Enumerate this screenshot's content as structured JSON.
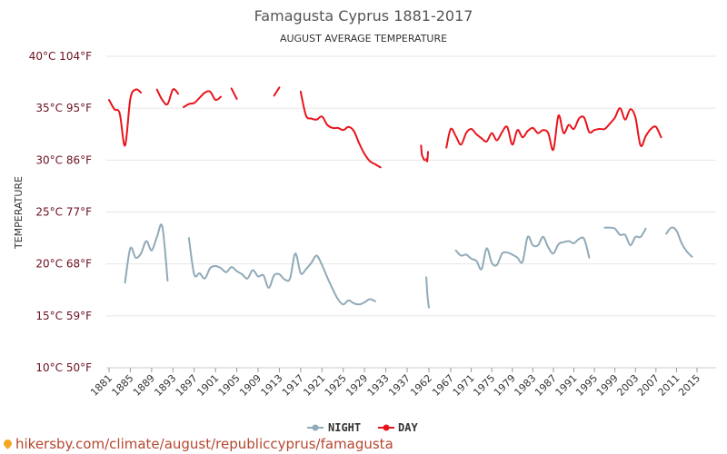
{
  "chart_data": {
    "type": "line",
    "title": "Famagusta Cyprus 1881-2017",
    "subtitle": "AUGUST AVERAGE TEMPERATURE",
    "ylabel": "TEMPERATURE",
    "ylim": [
      10,
      40
    ],
    "y_ticks": [
      {
        "value": 10,
        "label": "10°C 50°F"
      },
      {
        "value": 15,
        "label": "15°C 59°F"
      },
      {
        "value": 20,
        "label": "20°C 68°F"
      },
      {
        "value": 25,
        "label": "25°C 77°F"
      },
      {
        "value": 30,
        "label": "30°C 86°F"
      },
      {
        "value": 35,
        "label": "35°C 95°F"
      },
      {
        "value": 40,
        "label": "40°C 104°F"
      }
    ],
    "x_tick_labels": [
      "1881",
      "1885",
      "1889",
      "1893",
      "1897",
      "1901",
      "1905",
      "1909",
      "1913",
      "1917",
      "1921",
      "1925",
      "1929",
      "1933",
      "1937",
      "1962",
      "1967",
      "1971",
      "1975",
      "1979",
      "1983",
      "1987",
      "1991",
      "1995",
      "1999",
      "2003",
      "2007",
      "2011",
      "2015"
    ],
    "grid": true,
    "legend_position": "bottom",
    "series": [
      {
        "name": "NIGHT",
        "color": "#90aab8",
        "points": [
          [
            "1884",
            18.2
          ],
          [
            "1885",
            21.5
          ],
          [
            "1886",
            20.6
          ],
          [
            "1887",
            21.0
          ],
          [
            "1888",
            22.2
          ],
          [
            "1889",
            21.3
          ],
          [
            "1890",
            22.6
          ],
          [
            "1891",
            23.6
          ],
          [
            "1892",
            18.4
          ],
          null,
          [
            "1896",
            22.5
          ],
          [
            "1897",
            19.0
          ],
          [
            "1898",
            19.1
          ],
          [
            "1899",
            18.6
          ],
          [
            "1900",
            19.6
          ],
          [
            "1901",
            19.8
          ],
          [
            "1902",
            19.6
          ],
          [
            "1903",
            19.2
          ],
          [
            "1904",
            19.7
          ],
          [
            "1905",
            19.3
          ],
          [
            "1906",
            19.0
          ],
          [
            "1907",
            18.6
          ],
          [
            "1908",
            19.4
          ],
          [
            "1909",
            18.8
          ],
          [
            "1910",
            18.9
          ],
          [
            "1911",
            17.7
          ],
          [
            "1912",
            18.9
          ],
          [
            "1913",
            19.0
          ],
          [
            "1914",
            18.5
          ],
          [
            "1915",
            18.6
          ],
          [
            "1916",
            21.0
          ],
          [
            "1917",
            19.1
          ],
          [
            "1918",
            19.5
          ],
          [
            "1919",
            20.1
          ],
          [
            "1920",
            20.8
          ],
          [
            "1921",
            19.9
          ],
          [
            "1922",
            18.7
          ],
          [
            "1923",
            17.6
          ],
          [
            "1924",
            16.6
          ],
          [
            "1925",
            16.1
          ],
          [
            "1926",
            16.5
          ],
          [
            "1927",
            16.2
          ],
          [
            "1928",
            16.1
          ],
          [
            "1929",
            16.3
          ],
          [
            "1930",
            16.6
          ],
          [
            "1931",
            16.4
          ],
          null,
          [
            "1959",
            18.7
          ],
          [
            "1960",
            17.3
          ],
          [
            "1961",
            16.4
          ],
          [
            "1962",
            15.8
          ],
          null,
          [
            "1968",
            21.3
          ],
          [
            "1969",
            20.8
          ],
          [
            "1970",
            20.9
          ],
          [
            "1971",
            20.5
          ],
          [
            "1972",
            20.3
          ],
          [
            "1973",
            19.5
          ],
          [
            "1974",
            21.5
          ],
          [
            "1975",
            20.1
          ],
          [
            "1976",
            19.9
          ],
          [
            "1977",
            21.0
          ],
          [
            "1978",
            21.1
          ],
          [
            "1979",
            20.9
          ],
          [
            "1980",
            20.6
          ],
          [
            "1981",
            20.2
          ],
          [
            "1982",
            22.6
          ],
          [
            "1983",
            21.8
          ],
          [
            "1984",
            21.8
          ],
          [
            "1985",
            22.6
          ],
          [
            "1986",
            21.6
          ],
          [
            "1987",
            21.0
          ],
          [
            "1988",
            21.9
          ],
          [
            "1989",
            22.1
          ],
          [
            "1990",
            22.2
          ],
          [
            "1991",
            22.0
          ],
          [
            "1992",
            22.4
          ],
          [
            "1993",
            22.4
          ],
          [
            "1994",
            20.6
          ],
          null,
          [
            "1997",
            23.5
          ],
          [
            "1998",
            23.5
          ],
          [
            "1999",
            23.4
          ],
          [
            "2000",
            22.8
          ],
          [
            "2001",
            22.8
          ],
          [
            "2002",
            21.8
          ],
          [
            "2003",
            22.6
          ],
          [
            "2004",
            22.6
          ],
          [
            "2005",
            23.4
          ],
          null,
          [
            "2009",
            22.9
          ],
          [
            "2010",
            23.5
          ],
          [
            "2011",
            23.2
          ],
          [
            "2012",
            22.0
          ],
          [
            "2013",
            21.2
          ],
          [
            "2014",
            20.7
          ]
        ]
      },
      {
        "name": "DAY",
        "color": "#e8141c",
        "points": [
          [
            "1881",
            35.8
          ],
          [
            "1882",
            34.9
          ],
          [
            "1883",
            34.5
          ],
          [
            "1884",
            31.4
          ],
          [
            "1885",
            35.9
          ],
          [
            "1886",
            36.8
          ],
          [
            "1887",
            36.5
          ],
          null,
          [
            "1890",
            36.8
          ],
          [
            "1891",
            35.8
          ],
          [
            "1892",
            35.4
          ],
          [
            "1893",
            36.8
          ],
          [
            "1894",
            36.4
          ],
          null,
          [
            "1895",
            35.1
          ],
          [
            "1896",
            35.4
          ],
          [
            "1897",
            35.5
          ],
          [
            "1898",
            36.0
          ],
          [
            "1899",
            36.5
          ],
          [
            "1900",
            36.6
          ],
          [
            "1901",
            35.8
          ],
          [
            "1902",
            36.1
          ],
          null,
          [
            "1904",
            36.9
          ],
          [
            "1905",
            35.9
          ],
          null,
          [
            "1912",
            36.2
          ],
          [
            "1913",
            37.0
          ],
          null,
          [
            "1917",
            36.6
          ],
          [
            "1918",
            34.3
          ],
          [
            "1919",
            34.0
          ],
          [
            "1920",
            33.9
          ],
          [
            "1921",
            34.2
          ],
          [
            "1922",
            33.4
          ],
          [
            "1923",
            33.1
          ],
          [
            "1924",
            33.1
          ],
          [
            "1925",
            32.9
          ],
          [
            "1926",
            33.2
          ],
          [
            "1927",
            32.8
          ],
          [
            "1928",
            31.6
          ],
          [
            "1929",
            30.6
          ],
          [
            "1930",
            29.9
          ],
          [
            "1931",
            29.6
          ],
          [
            "1932",
            29.3
          ],
          null,
          [
            "1953",
            31.4
          ],
          [
            "1954",
            30.5
          ],
          [
            "1955",
            30.3
          ],
          [
            "1956",
            30.1
          ],
          [
            "1957",
            30.0
          ],
          null,
          [
            "1959",
            30.1
          ],
          [
            "1960",
            29.9
          ],
          [
            "1961",
            30.8
          ],
          null,
          [
            "1966",
            31.2
          ],
          [
            "1967",
            33.0
          ],
          [
            "1968",
            32.3
          ],
          [
            "1969",
            31.5
          ],
          [
            "1970",
            32.6
          ],
          [
            "1971",
            33.0
          ],
          [
            "1972",
            32.5
          ],
          [
            "1973",
            32.1
          ],
          [
            "1974",
            31.8
          ],
          [
            "1975",
            32.6
          ],
          [
            "1976",
            31.9
          ],
          [
            "1977",
            32.7
          ],
          [
            "1978",
            33.2
          ],
          [
            "1979",
            31.5
          ],
          [
            "1980",
            32.9
          ],
          [
            "1981",
            32.2
          ],
          [
            "1982",
            32.8
          ],
          [
            "1983",
            33.1
          ],
          [
            "1984",
            32.6
          ],
          [
            "1985",
            32.9
          ],
          [
            "1986",
            32.6
          ],
          [
            "1987",
            31.0
          ],
          [
            "1988",
            34.3
          ],
          [
            "1989",
            32.6
          ],
          [
            "1990",
            33.4
          ],
          [
            "1991",
            33.0
          ],
          [
            "1992",
            34.0
          ],
          [
            "1993",
            34.1
          ],
          [
            "1994",
            32.7
          ],
          [
            "1995",
            32.9
          ],
          [
            "1996",
            33.0
          ],
          [
            "1997",
            33.0
          ],
          [
            "1998",
            33.5
          ],
          [
            "1999",
            34.1
          ],
          [
            "2000",
            35.0
          ],
          [
            "2001",
            33.9
          ],
          [
            "2002",
            34.9
          ],
          [
            "2003",
            34.1
          ],
          [
            "2004",
            31.4
          ],
          [
            "2005",
            32.3
          ],
          [
            "2006",
            33.0
          ],
          [
            "2007",
            33.2
          ],
          [
            "2008",
            32.2
          ]
        ]
      }
    ]
  },
  "watermark": {
    "text": "hikersby.com/climate/august/republiccyprus/famagusta",
    "icon": "map-pin-icon"
  }
}
